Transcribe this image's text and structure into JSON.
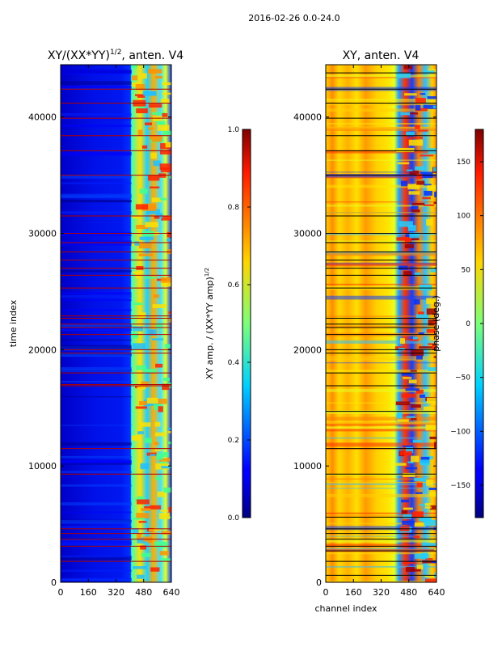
{
  "suptitle": "2016-02-26 0.0-24.0",
  "chart_data": [
    {
      "type": "heatmap",
      "title_main": "XY/(XX*YY)",
      "title_sup": "1/2",
      "title_tail": ", anten. V4",
      "xlabel": "",
      "ylabel": "time index",
      "xlim": [
        0,
        640
      ],
      "ylim": [
        0,
        44500
      ],
      "xticks": [
        "0",
        "160",
        "320",
        "480",
        "640"
      ],
      "yticks": [
        "0",
        "10000",
        "20000",
        "30000",
        "40000"
      ],
      "colorbar": {
        "label_main": "XY amp. / (XX*YY amp)",
        "label_sup": "1/2",
        "range": [
          0,
          1
        ],
        "ticks": [
          "0.0",
          "0.2",
          "0.4",
          "0.6",
          "0.8",
          "1.0"
        ]
      },
      "flagged_rows": [
        1800,
        3100,
        3700,
        4200,
        4600,
        9300,
        11500,
        16900,
        17000,
        18000,
        19700,
        20000,
        21300,
        21900,
        22200,
        22700,
        22900,
        25300,
        26400,
        27000,
        27700,
        28400,
        29200,
        30000,
        31500,
        35000,
        37100,
        38400,
        39900,
        41200,
        42400
      ]
    },
    {
      "type": "heatmap",
      "title": "XY, anten. V4",
      "xlabel": "channel index",
      "ylabel": "",
      "xlim": [
        0,
        640
      ],
      "ylim": [
        0,
        44500
      ],
      "xticks": [
        "0",
        "160",
        "320",
        "480",
        "640"
      ],
      "yticks": [
        "0",
        "10000",
        "20000",
        "30000",
        "40000"
      ],
      "colorbar": {
        "label": "phase (deg.)",
        "range": [
          -180,
          180
        ],
        "ticks": [
          "−150",
          "−100",
          "−50",
          "0",
          "50",
          "100",
          "150"
        ]
      },
      "flagged_rows": [
        600,
        1800,
        2700,
        3100,
        3700,
        4200,
        4600,
        5600,
        9300,
        11500,
        14700,
        16900,
        18000,
        19700,
        20000,
        21300,
        21900,
        22200,
        22700,
        25300,
        26400,
        27000,
        27700,
        28400,
        29200,
        30000,
        31500,
        35000,
        37100,
        38400,
        39900,
        41200,
        42400,
        43800
      ]
    }
  ]
}
